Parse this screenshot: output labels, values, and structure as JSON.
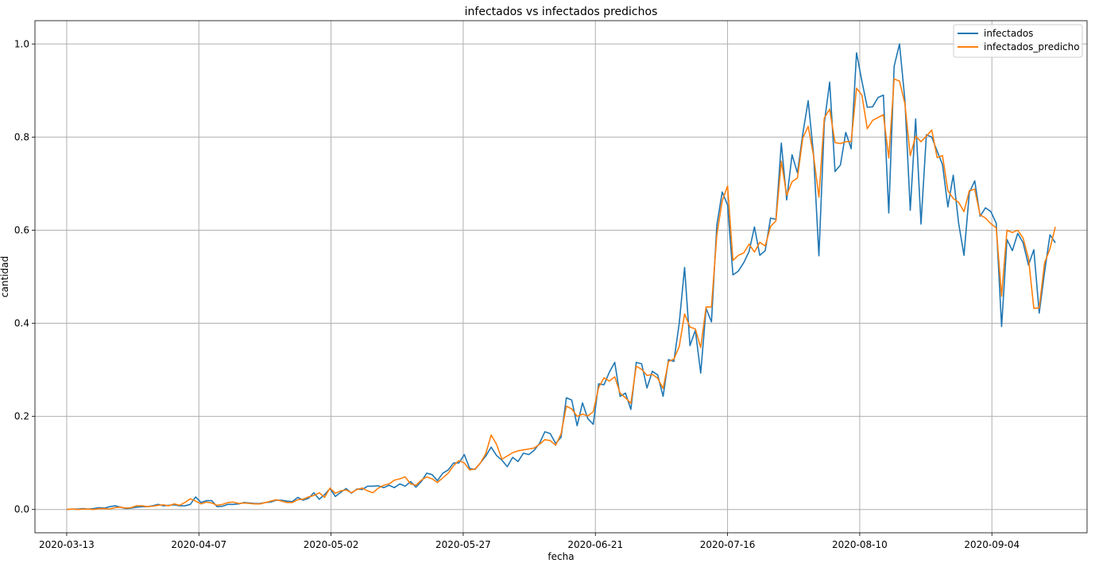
{
  "chart_data": {
    "type": "line",
    "title": "infectados vs infectados predichos",
    "xlabel": "fecha",
    "ylabel": "cantidad",
    "x_start": "2020-03-13",
    "x_end": "2020-09-16",
    "xlim": [
      "2020-03-07",
      "2020-09-22"
    ],
    "ylim": [
      -0.05,
      1.05
    ],
    "x_ticks": [
      "2020-03-13",
      "2020-04-07",
      "2020-05-02",
      "2020-05-27",
      "2020-06-21",
      "2020-07-16",
      "2020-08-10",
      "2020-09-04"
    ],
    "y_ticks": [
      0.0,
      0.2,
      0.4,
      0.6,
      0.8,
      1.0
    ],
    "y_tick_labels": [
      "0.0",
      "0.2",
      "0.4",
      "0.6",
      "0.8",
      "1.0"
    ],
    "grid": true,
    "legend_position": "top-right",
    "series": [
      {
        "name": "infectados",
        "color": "#1f77b4",
        "values": [
          0.0,
          0.001,
          0.001,
          0.002,
          0.001,
          0.002,
          0.004,
          0.003,
          0.006,
          0.008,
          0.005,
          0.002,
          0.003,
          0.005,
          0.006,
          0.006,
          0.008,
          0.011,
          0.008,
          0.009,
          0.01,
          0.008,
          0.008,
          0.011,
          0.027,
          0.015,
          0.019,
          0.019,
          0.006,
          0.007,
          0.011,
          0.011,
          0.012,
          0.015,
          0.014,
          0.013,
          0.013,
          0.015,
          0.016,
          0.02,
          0.02,
          0.018,
          0.017,
          0.026,
          0.02,
          0.024,
          0.036,
          0.022,
          0.032,
          0.045,
          0.028,
          0.037,
          0.045,
          0.035,
          0.044,
          0.043,
          0.05,
          0.05,
          0.051,
          0.047,
          0.052,
          0.047,
          0.055,
          0.05,
          0.06,
          0.048,
          0.06,
          0.078,
          0.075,
          0.062,
          0.078,
          0.085,
          0.1,
          0.1,
          0.118,
          0.088,
          0.086,
          0.1,
          0.115,
          0.134,
          0.116,
          0.106,
          0.092,
          0.112,
          0.103,
          0.121,
          0.118,
          0.127,
          0.142,
          0.167,
          0.163,
          0.142,
          0.155,
          0.24,
          0.235,
          0.18,
          0.229,
          0.195,
          0.183,
          0.27,
          0.268,
          0.295,
          0.316,
          0.243,
          0.25,
          0.215,
          0.316,
          0.313,
          0.261,
          0.297,
          0.289,
          0.243,
          0.322,
          0.318,
          0.4,
          0.52,
          0.352,
          0.385,
          0.293,
          0.432,
          0.403,
          0.611,
          0.682,
          0.654,
          0.504,
          0.512,
          0.53,
          0.554,
          0.607,
          0.546,
          0.556,
          0.626,
          0.623,
          0.787,
          0.665,
          0.762,
          0.723,
          0.807,
          0.878,
          0.763,
          0.545,
          0.83,
          0.918,
          0.726,
          0.74,
          0.81,
          0.775,
          0.981,
          0.92,
          0.864,
          0.865,
          0.885,
          0.89,
          0.637,
          0.952,
          1.0,
          0.88,
          0.643,
          0.839,
          0.613,
          0.805,
          0.8,
          0.77,
          0.741,
          0.65,
          0.718,
          0.615,
          0.546,
          0.681,
          0.706,
          0.63,
          0.648,
          0.64,
          0.615,
          0.393,
          0.58,
          0.556,
          0.593,
          0.573,
          0.525,
          0.558,
          0.422,
          0.51,
          0.59,
          0.573
        ]
      },
      {
        "name": "infectados_predicho",
        "color": "#ff7f0e",
        "values": [
          0.0,
          0.001,
          0.0,
          0.001,
          0.001,
          0.0,
          0.002,
          0.002,
          0.001,
          0.004,
          0.005,
          0.003,
          0.004,
          0.008,
          0.008,
          0.006,
          0.007,
          0.009,
          0.01,
          0.008,
          0.012,
          0.009,
          0.015,
          0.023,
          0.018,
          0.012,
          0.016,
          0.014,
          0.009,
          0.011,
          0.015,
          0.016,
          0.013,
          0.014,
          0.013,
          0.012,
          0.012,
          0.015,
          0.018,
          0.021,
          0.018,
          0.015,
          0.015,
          0.021,
          0.022,
          0.027,
          0.03,
          0.036,
          0.026,
          0.046,
          0.035,
          0.04,
          0.042,
          0.036,
          0.043,
          0.046,
          0.04,
          0.036,
          0.046,
          0.052,
          0.055,
          0.063,
          0.066,
          0.07,
          0.055,
          0.052,
          0.063,
          0.07,
          0.066,
          0.058,
          0.068,
          0.078,
          0.094,
          0.105,
          0.1,
          0.085,
          0.087,
          0.1,
          0.12,
          0.16,
          0.14,
          0.108,
          0.115,
          0.122,
          0.126,
          0.128,
          0.13,
          0.132,
          0.14,
          0.15,
          0.148,
          0.138,
          0.162,
          0.222,
          0.216,
          0.2,
          0.205,
          0.201,
          0.21,
          0.262,
          0.283,
          0.276,
          0.285,
          0.25,
          0.24,
          0.228,
          0.308,
          0.301,
          0.288,
          0.29,
          0.282,
          0.26,
          0.318,
          0.323,
          0.35,
          0.42,
          0.392,
          0.388,
          0.348,
          0.435,
          0.435,
          0.59,
          0.663,
          0.695,
          0.535,
          0.546,
          0.551,
          0.57,
          0.553,
          0.574,
          0.566,
          0.608,
          0.62,
          0.748,
          0.675,
          0.704,
          0.712,
          0.798,
          0.823,
          0.76,
          0.671,
          0.841,
          0.86,
          0.788,
          0.786,
          0.79,
          0.79,
          0.905,
          0.89,
          0.818,
          0.836,
          0.842,
          0.848,
          0.755,
          0.925,
          0.92,
          0.872,
          0.76,
          0.802,
          0.79,
          0.802,
          0.815,
          0.756,
          0.76,
          0.685,
          0.668,
          0.66,
          0.64,
          0.685,
          0.688,
          0.633,
          0.626,
          0.614,
          0.605,
          0.458,
          0.6,
          0.595,
          0.6,
          0.583,
          0.54,
          0.432,
          0.433,
          0.53,
          0.56,
          0.607
        ]
      }
    ]
  }
}
